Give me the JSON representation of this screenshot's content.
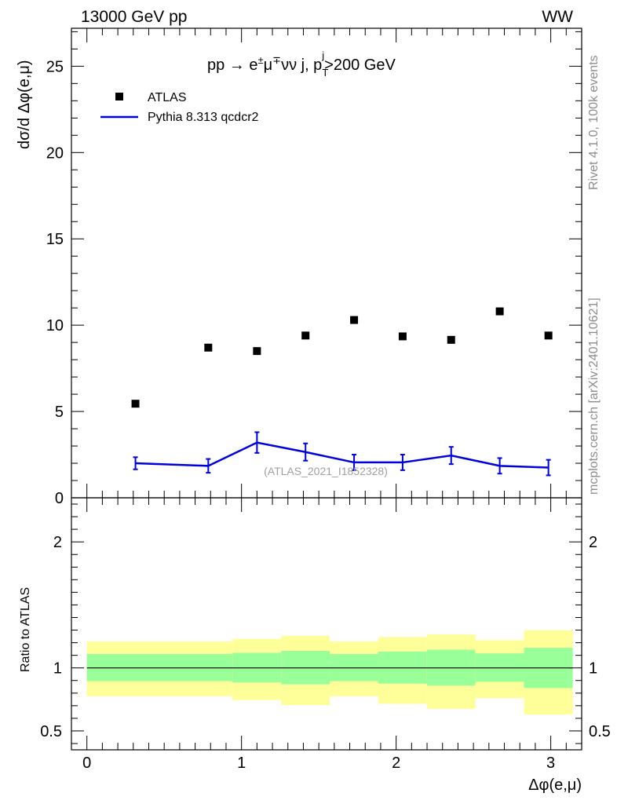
{
  "header": {
    "left": "13000 GeV pp",
    "right": "WW"
  },
  "side": {
    "rivet": "Rivet 4.1.0,  100k events",
    "mcplots": "mcplots.cern.ch [arXiv:2401.10621]"
  },
  "chart_data": [
    {
      "type": "scatter",
      "title": "pp → e±μ∓νν j, p_T^j>200 GeV",
      "title_parts": {
        "base": "pp  →  e",
        "pm": "±",
        "mu": "μ",
        "mp": "∓",
        "rest": "νν j, p",
        "sub": "T",
        "sup": "j",
        "tail": ">200 GeV"
      },
      "ylabel": "dσ/d Δφ(e,μ)",
      "xlabel": "",
      "xlim": [
        -0.1,
        3.2
      ],
      "ylim": [
        0,
        27.2
      ],
      "yticks": [
        0,
        5,
        10,
        15,
        20,
        25
      ],
      "annotation": "(ATLAS_2021_I1852328)",
      "legend": [
        {
          "name": "ATLAS",
          "style": "marker"
        },
        {
          "name": "Pythia 8.313 qcdcr2",
          "style": "line",
          "color": "#0000dd"
        }
      ],
      "series": [
        {
          "name": "ATLAS",
          "x": [
            0.314,
            0.785,
            1.1,
            1.414,
            1.728,
            2.042,
            2.356,
            2.67,
            2.985
          ],
          "values": [
            5.45,
            8.7,
            8.5,
            9.4,
            10.3,
            9.35,
            9.15,
            10.8,
            9.4
          ]
        },
        {
          "name": "Pythia 8.313 qcdcr2",
          "color": "#0000dd",
          "x": [
            0.314,
            0.785,
            1.1,
            1.414,
            1.728,
            2.042,
            2.356,
            2.67,
            2.985
          ],
          "values": [
            2.0,
            1.85,
            3.2,
            2.65,
            2.05,
            2.05,
            2.45,
            1.85,
            1.75
          ],
          "errors": [
            0.35,
            0.4,
            0.6,
            0.5,
            0.45,
            0.45,
            0.5,
            0.45,
            0.45
          ]
        }
      ]
    },
    {
      "type": "area",
      "ylabel": "Ratio to ATLAS",
      "xlabel": "Δφ(e,μ)",
      "xlim": [
        -0.1,
        3.2
      ],
      "ylim": [
        0.35,
        2.35
      ],
      "yticks": [
        0.5,
        1,
        1.5,
        2
      ],
      "ytick_labels": [
        "0.5",
        "1",
        "",
        "2"
      ],
      "xticks": [
        0,
        1,
        2,
        3
      ],
      "bins": [
        {
          "lo": 0.0,
          "hi": 0.942,
          "inner": [
            0.895,
            1.11
          ],
          "outer": [
            0.775,
            1.21
          ]
        },
        {
          "lo": 0.942,
          "hi": 1.257,
          "inner": [
            0.885,
            1.12
          ],
          "outer": [
            0.745,
            1.23
          ]
        },
        {
          "lo": 1.257,
          "hi": 1.571,
          "inner": [
            0.87,
            1.135
          ],
          "outer": [
            0.705,
            1.255
          ]
        },
        {
          "lo": 1.571,
          "hi": 1.885,
          "inner": [
            0.895,
            1.11
          ],
          "outer": [
            0.775,
            1.21
          ]
        },
        {
          "lo": 1.885,
          "hi": 2.199,
          "inner": [
            0.875,
            1.13
          ],
          "outer": [
            0.715,
            1.245
          ]
        },
        {
          "lo": 2.199,
          "hi": 2.513,
          "inner": [
            0.86,
            1.145
          ],
          "outer": [
            0.675,
            1.265
          ]
        },
        {
          "lo": 2.513,
          "hi": 2.827,
          "inner": [
            0.89,
            1.115
          ],
          "outer": [
            0.76,
            1.22
          ]
        },
        {
          "lo": 2.827,
          "hi": 3.142,
          "inner": [
            0.84,
            1.16
          ],
          "outer": [
            0.63,
            1.3
          ]
        }
      ],
      "reference": 1.0,
      "colors": {
        "inner": "#99ff99",
        "outer": "#ffff99"
      }
    }
  ]
}
